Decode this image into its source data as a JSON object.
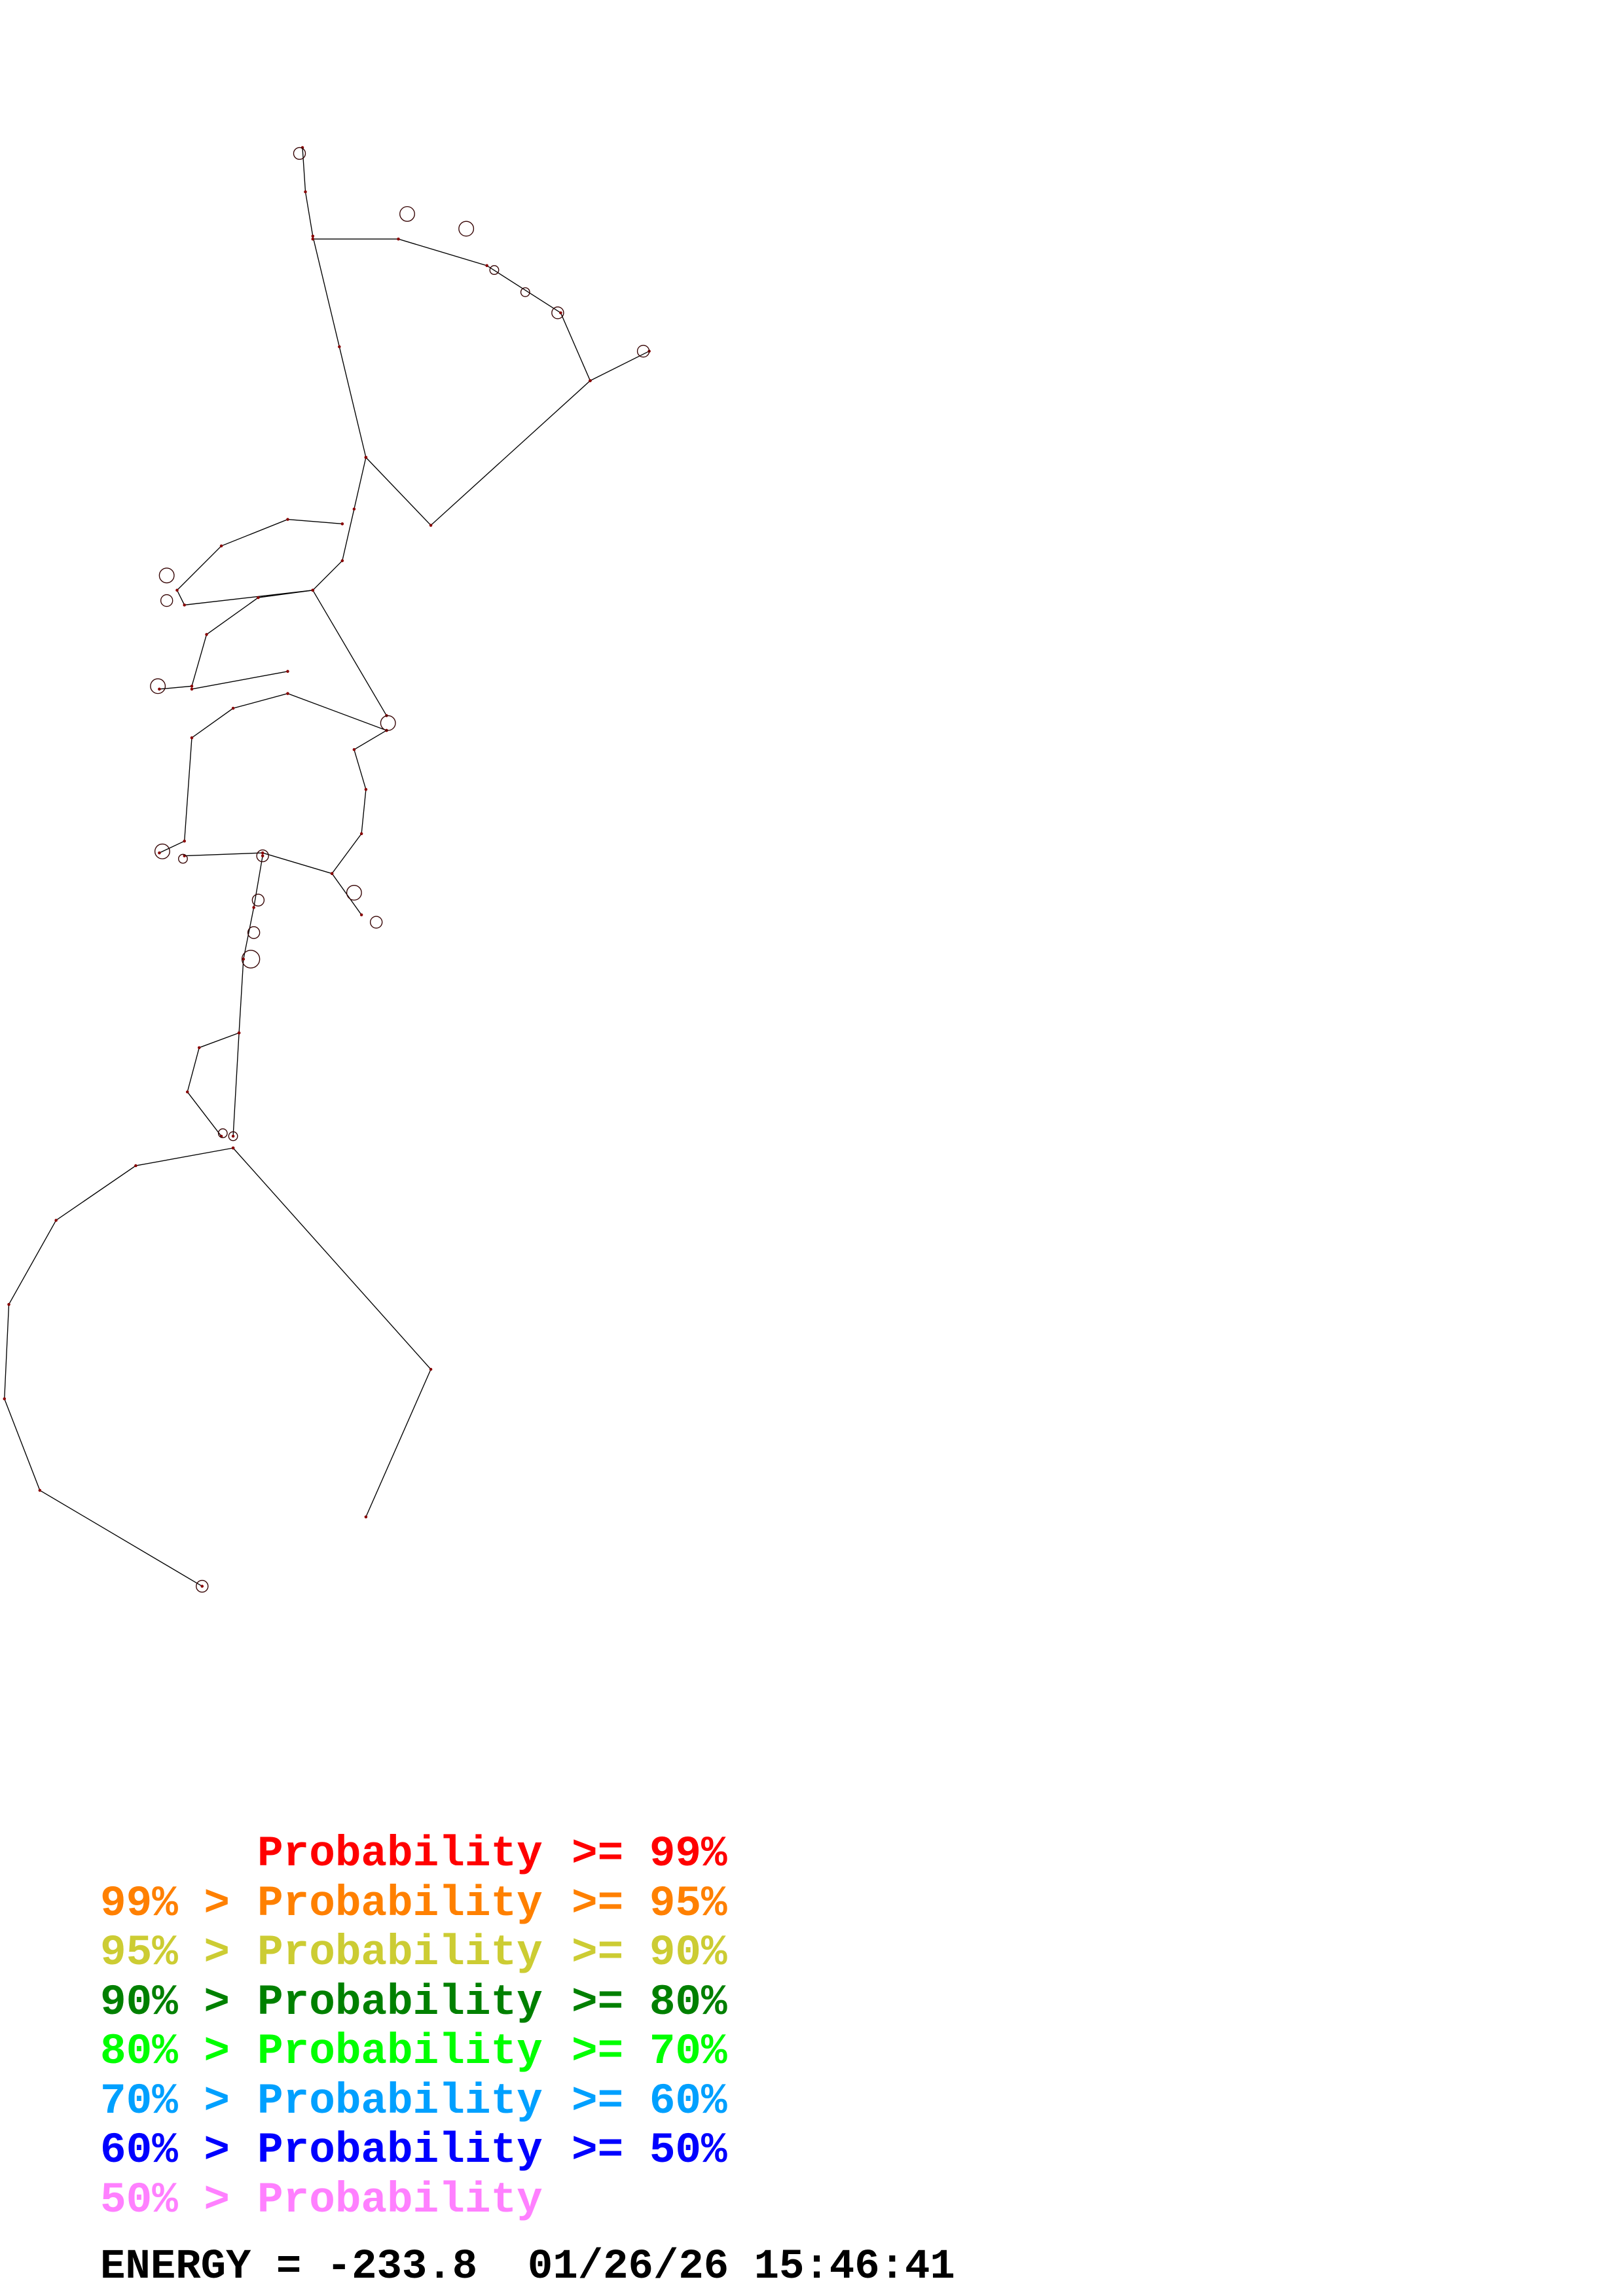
{
  "legend": [
    {
      "prefix": "",
      "label": "Probability",
      "suffix": ">= 99%",
      "color": "#ff0000"
    },
    {
      "prefix": "99% >",
      "label": "Probability",
      "suffix": ">= 95%",
      "color": "#ff8000"
    },
    {
      "prefix": "95% >",
      "label": "Probability",
      "suffix": ">= 90%",
      "color": "#cccc33"
    },
    {
      "prefix": "90% >",
      "label": "Probability",
      "suffix": ">= 80%",
      "color": "#008000"
    },
    {
      "prefix": "80% >",
      "label": "Probability",
      "suffix": ">= 70%",
      "color": "#00ff00"
    },
    {
      "prefix": "70% >",
      "label": "Probability",
      "suffix": ">= 60%",
      "color": "#00a0ff"
    },
    {
      "prefix": "60% >",
      "label": "Probability",
      "suffix": ">= 50%",
      "color": "#0000ff"
    },
    {
      "prefix": "50% >",
      "label": "Probability",
      "suffix": "",
      "color": "#ff80ff"
    }
  ],
  "footer": {
    "energy": "ENERGY = -233.8",
    "timestamp": "01/26/26 15:46:41"
  }
}
